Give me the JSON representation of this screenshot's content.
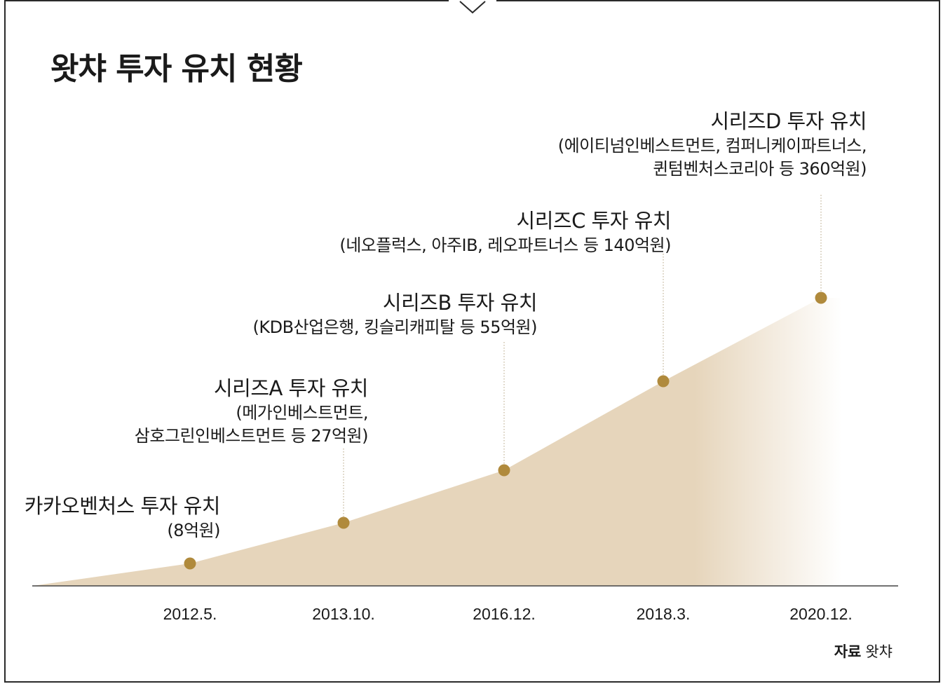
{
  "title": "왓챠 투자 유치 현황",
  "source": {
    "label": "자료",
    "value": "왓챠"
  },
  "colors": {
    "area": "#e6d5bb",
    "marker": "#b08a3c",
    "axis": "#444444",
    "leader": "#b3a27f"
  },
  "chart_data": {
    "type": "area",
    "categories": [
      "2012.5.",
      "2013.10.",
      "2016.12.",
      "2018.3.",
      "2020.12."
    ],
    "values": [
      8,
      27,
      55,
      140,
      360
    ],
    "annotations": [
      {
        "title": "카카오벤처스 투자 유치",
        "lines": [
          "(8억원)"
        ]
      },
      {
        "title": "시리즈A 투자 유치",
        "lines": [
          "(메가인베스트먼트,",
          "삼호그린인베스트먼트 등 27억원)"
        ]
      },
      {
        "title": "시리즈B 투자 유치",
        "lines": [
          "(KDB산업은행, 킹슬리캐피탈 등 55억원)"
        ]
      },
      {
        "title": "시리즈C 투자 유치",
        "lines": [
          "(네오플럭스, 아주IB, 레오파트너스 등 140억원)"
        ]
      },
      {
        "title": "시리즈D 투자 유치",
        "lines": [
          "(에이티넘인베스트먼트, 컴퍼니케이파트너스,",
          "퀸텀벤처스코리아 등 360억원)"
        ]
      }
    ],
    "scale": "non-linear (illustrative)",
    "grid": false,
    "legend": "none"
  }
}
